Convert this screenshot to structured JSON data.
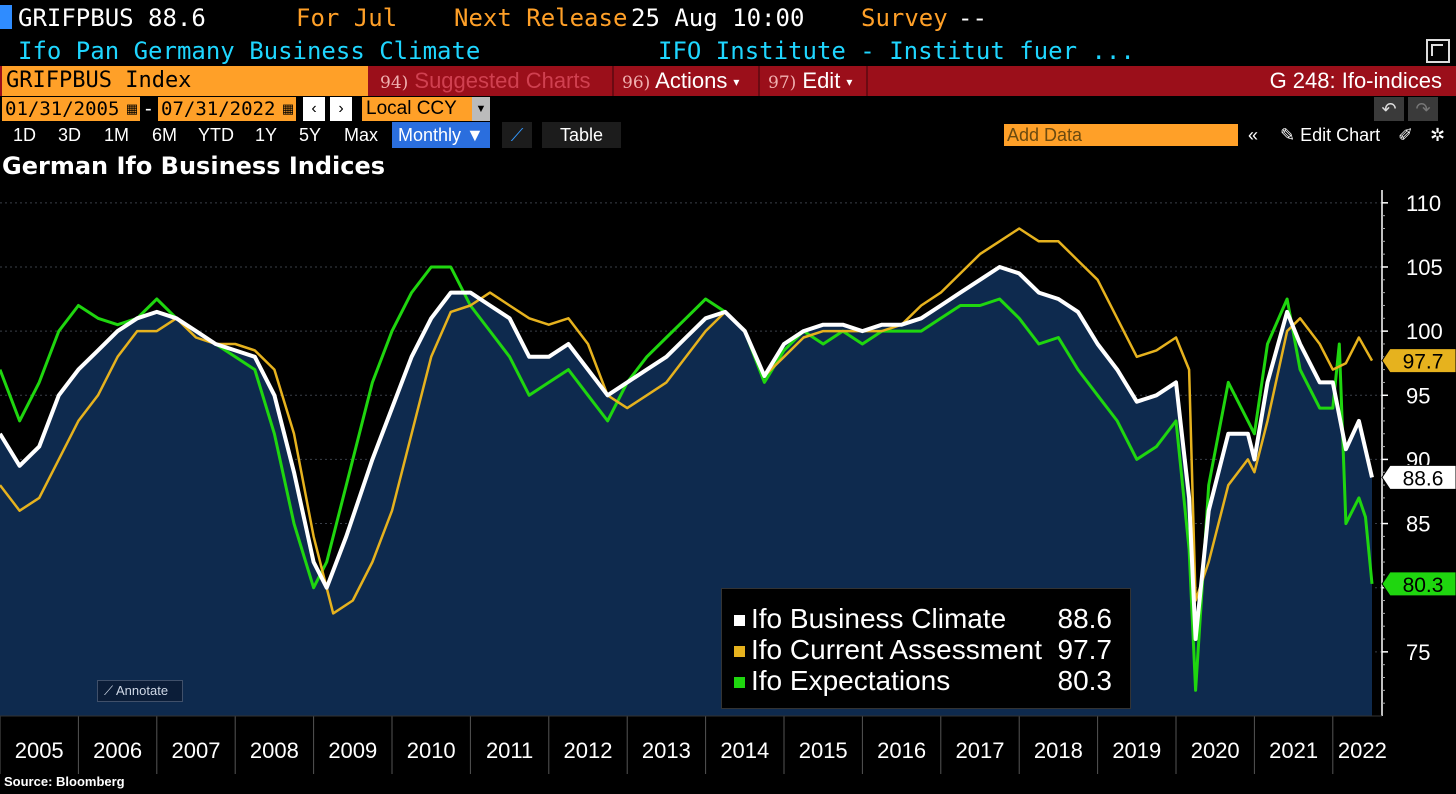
{
  "header": {
    "ticker": "GRIFPBUS",
    "last": "88.6",
    "period_label": "For Jul",
    "next_release_label": "Next Release",
    "next_release_value": "25 Aug 10:00",
    "survey_label": "Survey",
    "survey_value": "--",
    "description": "Ifo Pan Germany Business Climate",
    "source_inst": "IFO Institute - Institut fuer ..."
  },
  "command_bar": {
    "security": "GRIFPBUS Index",
    "suggested_num": "94)",
    "suggested_label": "Suggested Charts",
    "actions_num": "96)",
    "actions_label": "Actions",
    "edit_num": "97)",
    "edit_label": "Edit",
    "function": "G 248: Ifo-indices"
  },
  "date_bar": {
    "start": "01/31/2005",
    "sep": "-",
    "end": "07/31/2022",
    "currency": "Local CCY"
  },
  "timeframes": [
    "1D",
    "3D",
    "1M",
    "6M",
    "YTD",
    "1Y",
    "5Y",
    "Max"
  ],
  "period_select": "Monthly",
  "table_label": "Table",
  "add_data_placeholder": "Add Data",
  "edit_chart_label": "Edit Chart",
  "annotate_label": "Annotate",
  "source_note": "Source: Bloomberg",
  "colors": {
    "climate": "#ffffff",
    "current": "#e6b21e",
    "expectations": "#1fd60f",
    "area_fill": "#0e2a4e",
    "background": "#000000"
  },
  "chart_data": {
    "type": "line",
    "title": "German Ifo Business Indices",
    "x_range": [
      "2005-01",
      "2022-07"
    ],
    "ylim": [
      70,
      111
    ],
    "yticks": [
      75,
      80,
      85,
      90,
      95,
      100,
      105,
      110
    ],
    "xticks": [
      "2005",
      "2006",
      "2007",
      "2008",
      "2009",
      "2010",
      "2011",
      "2012",
      "2013",
      "2014",
      "2015",
      "2016",
      "2017",
      "2018",
      "2019",
      "2020",
      "2021",
      "2022"
    ],
    "grid": true,
    "legend_position": "bottom-right",
    "series": [
      {
        "name": "Ifo Business Climate",
        "last": "88.6",
        "points": [
          [
            "2005-01",
            92
          ],
          [
            "2005-04",
            89.5
          ],
          [
            "2005-07",
            91
          ],
          [
            "2005-10",
            95
          ],
          [
            "2006-01",
            97
          ],
          [
            "2006-04",
            98.5
          ],
          [
            "2006-07",
            100
          ],
          [
            "2006-10",
            101
          ],
          [
            "2007-01",
            101.5
          ],
          [
            "2007-04",
            101
          ],
          [
            "2007-07",
            100
          ],
          [
            "2007-10",
            99
          ],
          [
            "2008-01",
            98.5
          ],
          [
            "2008-04",
            98
          ],
          [
            "2008-07",
            95
          ],
          [
            "2008-10",
            89
          ],
          [
            "2009-01",
            82
          ],
          [
            "2009-03",
            80
          ],
          [
            "2009-06",
            84
          ],
          [
            "2009-10",
            90
          ],
          [
            "2010-01",
            94
          ],
          [
            "2010-04",
            98
          ],
          [
            "2010-07",
            101
          ],
          [
            "2010-10",
            103
          ],
          [
            "2011-01",
            103
          ],
          [
            "2011-04",
            102
          ],
          [
            "2011-07",
            101
          ],
          [
            "2011-10",
            98
          ],
          [
            "2012-01",
            98
          ],
          [
            "2012-04",
            99
          ],
          [
            "2012-07",
            97
          ],
          [
            "2012-10",
            95
          ],
          [
            "2013-01",
            96
          ],
          [
            "2013-04",
            97
          ],
          [
            "2013-07",
            98
          ],
          [
            "2013-10",
            99.5
          ],
          [
            "2014-01",
            101
          ],
          [
            "2014-04",
            101.5
          ],
          [
            "2014-07",
            100
          ],
          [
            "2014-10",
            96.5
          ],
          [
            "2015-01",
            99
          ],
          [
            "2015-04",
            100
          ],
          [
            "2015-07",
            100.5
          ],
          [
            "2015-10",
            100.5
          ],
          [
            "2016-01",
            100
          ],
          [
            "2016-04",
            100.5
          ],
          [
            "2016-07",
            100.5
          ],
          [
            "2016-10",
            101
          ],
          [
            "2017-01",
            102
          ],
          [
            "2017-04",
            103
          ],
          [
            "2017-07",
            104
          ],
          [
            "2017-10",
            105
          ],
          [
            "2018-01",
            104.5
          ],
          [
            "2018-04",
            103
          ],
          [
            "2018-07",
            102.5
          ],
          [
            "2018-10",
            101.5
          ],
          [
            "2019-01",
            99
          ],
          [
            "2019-04",
            97
          ],
          [
            "2019-07",
            94.5
          ],
          [
            "2019-10",
            95
          ],
          [
            "2020-01",
            96
          ],
          [
            "2020-03",
            87
          ],
          [
            "2020-04",
            76
          ],
          [
            "2020-06",
            86
          ],
          [
            "2020-09",
            92
          ],
          [
            "2020-12",
            92
          ],
          [
            "2021-01",
            90
          ],
          [
            "2021-03",
            96
          ],
          [
            "2021-06",
            101.5
          ],
          [
            "2021-08",
            99
          ],
          [
            "2021-11",
            96
          ],
          [
            "2022-01",
            96
          ],
          [
            "2022-03",
            90.8
          ],
          [
            "2022-05",
            93
          ],
          [
            "2022-07",
            88.6
          ]
        ]
      },
      {
        "name": "Ifo Current Assessment",
        "last": "97.7",
        "points": [
          [
            "2005-01",
            88
          ],
          [
            "2005-04",
            86
          ],
          [
            "2005-07",
            87
          ],
          [
            "2005-10",
            90
          ],
          [
            "2006-01",
            93
          ],
          [
            "2006-04",
            95
          ],
          [
            "2006-07",
            98
          ],
          [
            "2006-10",
            100
          ],
          [
            "2007-01",
            100
          ],
          [
            "2007-04",
            101
          ],
          [
            "2007-07",
            99.5
          ],
          [
            "2007-10",
            99
          ],
          [
            "2008-01",
            99
          ],
          [
            "2008-04",
            98.5
          ],
          [
            "2008-07",
            97
          ],
          [
            "2008-10",
            92
          ],
          [
            "2009-01",
            84
          ],
          [
            "2009-04",
            78
          ],
          [
            "2009-07",
            79
          ],
          [
            "2009-10",
            82
          ],
          [
            "2010-01",
            86
          ],
          [
            "2010-04",
            92
          ],
          [
            "2010-07",
            98
          ],
          [
            "2010-10",
            101.5
          ],
          [
            "2011-01",
            102
          ],
          [
            "2011-04",
            103
          ],
          [
            "2011-07",
            102
          ],
          [
            "2011-10",
            101
          ],
          [
            "2012-01",
            100.5
          ],
          [
            "2012-04",
            101
          ],
          [
            "2012-07",
            99
          ],
          [
            "2012-10",
            95
          ],
          [
            "2013-01",
            94
          ],
          [
            "2013-04",
            95
          ],
          [
            "2013-07",
            96
          ],
          [
            "2013-10",
            98
          ],
          [
            "2014-01",
            100
          ],
          [
            "2014-04",
            101.5
          ],
          [
            "2014-07",
            100
          ],
          [
            "2014-10",
            96.5
          ],
          [
            "2015-01",
            98
          ],
          [
            "2015-04",
            99.5
          ],
          [
            "2015-07",
            100
          ],
          [
            "2015-10",
            100
          ],
          [
            "2016-01",
            100
          ],
          [
            "2016-04",
            100
          ],
          [
            "2016-07",
            100.5
          ],
          [
            "2016-10",
            102
          ],
          [
            "2017-01",
            103
          ],
          [
            "2017-04",
            104.5
          ],
          [
            "2017-07",
            106
          ],
          [
            "2017-10",
            107
          ],
          [
            "2018-01",
            108
          ],
          [
            "2018-04",
            107
          ],
          [
            "2018-07",
            107
          ],
          [
            "2018-10",
            105.5
          ],
          [
            "2019-01",
            104
          ],
          [
            "2019-04",
            101
          ],
          [
            "2019-07",
            98
          ],
          [
            "2019-10",
            98.5
          ],
          [
            "2020-01",
            99.5
          ],
          [
            "2020-03",
            97
          ],
          [
            "2020-04",
            79
          ],
          [
            "2020-06",
            82
          ],
          [
            "2020-09",
            88
          ],
          [
            "2020-12",
            90
          ],
          [
            "2021-01",
            89
          ],
          [
            "2021-03",
            93
          ],
          [
            "2021-06",
            100
          ],
          [
            "2021-08",
            101
          ],
          [
            "2021-11",
            99
          ],
          [
            "2022-01",
            97
          ],
          [
            "2022-03",
            97.5
          ],
          [
            "2022-05",
            99.5
          ],
          [
            "2022-07",
            97.7
          ]
        ]
      },
      {
        "name": "Ifo Expectations",
        "last": "80.3",
        "points": [
          [
            "2005-01",
            97
          ],
          [
            "2005-04",
            93
          ],
          [
            "2005-07",
            96
          ],
          [
            "2005-10",
            100
          ],
          [
            "2006-01",
            102
          ],
          [
            "2006-04",
            101
          ],
          [
            "2006-07",
            100.5
          ],
          [
            "2006-10",
            101
          ],
          [
            "2007-01",
            102.5
          ],
          [
            "2007-04",
            101
          ],
          [
            "2007-07",
            100
          ],
          [
            "2007-10",
            99
          ],
          [
            "2008-01",
            98
          ],
          [
            "2008-04",
            97
          ],
          [
            "2008-07",
            92
          ],
          [
            "2008-10",
            85
          ],
          [
            "2009-01",
            80
          ],
          [
            "2009-03",
            82
          ],
          [
            "2009-06",
            88
          ],
          [
            "2009-10",
            96
          ],
          [
            "2010-01",
            100
          ],
          [
            "2010-04",
            103
          ],
          [
            "2010-07",
            105
          ],
          [
            "2010-10",
            105
          ],
          [
            "2011-01",
            102
          ],
          [
            "2011-04",
            100
          ],
          [
            "2011-07",
            98
          ],
          [
            "2011-10",
            95
          ],
          [
            "2012-01",
            96
          ],
          [
            "2012-04",
            97
          ],
          [
            "2012-07",
            95
          ],
          [
            "2012-10",
            93
          ],
          [
            "2013-01",
            96
          ],
          [
            "2013-04",
            98
          ],
          [
            "2013-07",
            99.5
          ],
          [
            "2013-10",
            101
          ],
          [
            "2014-01",
            102.5
          ],
          [
            "2014-04",
            101.5
          ],
          [
            "2014-07",
            100
          ],
          [
            "2014-10",
            96
          ],
          [
            "2015-01",
            98.5
          ],
          [
            "2015-04",
            100
          ],
          [
            "2015-07",
            99
          ],
          [
            "2015-10",
            100
          ],
          [
            "2016-01",
            99
          ],
          [
            "2016-04",
            100
          ],
          [
            "2016-07",
            100
          ],
          [
            "2016-10",
            100
          ],
          [
            "2017-01",
            101
          ],
          [
            "2017-04",
            102
          ],
          [
            "2017-07",
            102
          ],
          [
            "2017-10",
            102.5
          ],
          [
            "2018-01",
            101
          ],
          [
            "2018-04",
            99
          ],
          [
            "2018-07",
            99.5
          ],
          [
            "2018-10",
            97
          ],
          [
            "2019-01",
            95
          ],
          [
            "2019-04",
            93
          ],
          [
            "2019-07",
            90
          ],
          [
            "2019-10",
            91
          ],
          [
            "2020-01",
            93
          ],
          [
            "2020-03",
            83
          ],
          [
            "2020-04",
            72
          ],
          [
            "2020-06",
            88
          ],
          [
            "2020-09",
            96
          ],
          [
            "2020-12",
            93
          ],
          [
            "2021-01",
            92
          ],
          [
            "2021-03",
            99
          ],
          [
            "2021-06",
            102.5
          ],
          [
            "2021-08",
            97
          ],
          [
            "2021-11",
            94
          ],
          [
            "2022-01",
            94
          ],
          [
            "2022-02",
            99
          ],
          [
            "2022-03",
            85
          ],
          [
            "2022-05",
            87
          ],
          [
            "2022-06",
            85.5
          ],
          [
            "2022-07",
            80.3
          ]
        ]
      }
    ]
  }
}
